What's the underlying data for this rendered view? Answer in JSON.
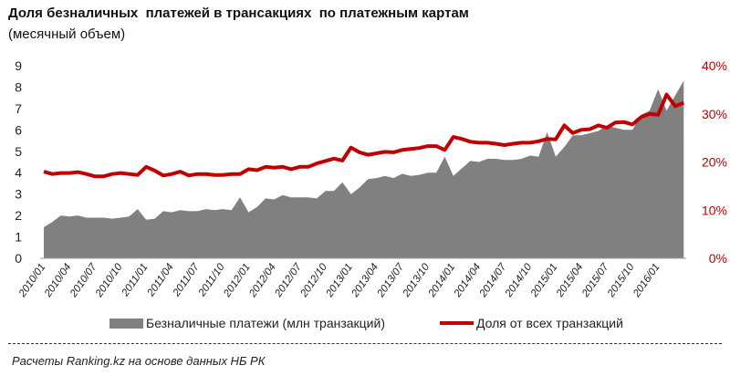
{
  "title": "Доля безналичных  платежей в трансакциях  по платежным картам",
  "subtitle": "(месячный объем)",
  "source": "Расчеты Ranking.kz на основе данных  НБ РК",
  "colors": {
    "area": "#808080",
    "line": "#c00000",
    "right_axis": "#c00000"
  },
  "chart_data": {
    "type": "area+line",
    "x_start": "2010/01",
    "x_end": "2016/04",
    "x_tick_labels": [
      "2010/01",
      "2010/04",
      "2010/07",
      "2010/10",
      "2011/01",
      "2011/04",
      "2011/07",
      "2011/10",
      "2012/01",
      "2012/04",
      "2012/07",
      "2012/10",
      "2013/01",
      "2013/04",
      "2013/07",
      "2013/10",
      "2014/01",
      "2014/04",
      "2014/07",
      "2014/10",
      "2015/01",
      "2015/04",
      "2015/07",
      "2015/10",
      "2016/01"
    ],
    "y_left": {
      "ticks": [
        "0",
        "1",
        "2",
        "3",
        "4",
        "5",
        "6",
        "7",
        "8",
        "9"
      ],
      "range": [
        0,
        9
      ]
    },
    "y_right": {
      "ticks": [
        "0%",
        "10%",
        "20%",
        "30%",
        "40%"
      ],
      "range": [
        0,
        40
      ]
    },
    "grid": false,
    "legend_position": "bottom",
    "series": [
      {
        "name": "Безналичные платежи (млн транзакций)",
        "type": "area",
        "axis": "left",
        "values": [
          1.45,
          1.7,
          2.0,
          1.95,
          2.0,
          1.9,
          1.9,
          1.9,
          1.85,
          1.9,
          1.95,
          2.3,
          1.8,
          1.85,
          2.2,
          2.15,
          2.25,
          2.2,
          2.2,
          2.3,
          2.25,
          2.3,
          2.25,
          2.85,
          2.15,
          2.4,
          2.8,
          2.75,
          2.95,
          2.85,
          2.85,
          2.85,
          2.8,
          3.15,
          3.15,
          3.55,
          3.0,
          3.3,
          3.7,
          3.75,
          3.85,
          3.75,
          3.95,
          3.85,
          3.9,
          4.0,
          4.0,
          4.75,
          3.85,
          4.2,
          4.55,
          4.5,
          4.65,
          4.65,
          4.6,
          4.6,
          4.65,
          4.8,
          4.75,
          5.9,
          4.75,
          5.2,
          5.75,
          5.75,
          5.85,
          5.95,
          6.2,
          6.1,
          6.0,
          6.0,
          6.7,
          6.9,
          7.9,
          6.9,
          7.6,
          8.3
        ]
      },
      {
        "name": "Доля от всех транзакций",
        "type": "line",
        "axis": "right",
        "unit": "%",
        "values": [
          18,
          17.5,
          17.7,
          17.7,
          17.9,
          17.5,
          17,
          17,
          17.5,
          17.7,
          17.5,
          17.3,
          19,
          18.2,
          17.2,
          17.5,
          18,
          17.2,
          17.5,
          17.5,
          17.3,
          17.3,
          17.5,
          17.5,
          18.5,
          18.3,
          19,
          18.8,
          19,
          18.5,
          19,
          19,
          19.7,
          20.2,
          20.7,
          20.3,
          23,
          22,
          21.5,
          21.8,
          22.1,
          22,
          22.5,
          22.7,
          22.9,
          23.3,
          23.3,
          22.5,
          25.2,
          24.8,
          24.2,
          24,
          24,
          23.8,
          23.5,
          23.8,
          24,
          24,
          24.3,
          24.8,
          24.7,
          27.6,
          26,
          26.7,
          26.8,
          27.6,
          27.1,
          28.2,
          28.3,
          27.8,
          29.3,
          30,
          29.8,
          34,
          31.6,
          32.3
        ]
      }
    ]
  }
}
